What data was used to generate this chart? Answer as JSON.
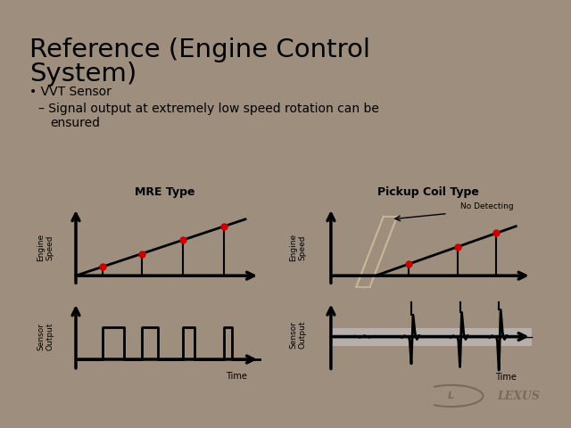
{
  "bg_color": "#9e8e7e",
  "slide_bg": "#f0eeec",
  "title_line1": "Reference (Engine Control",
  "title_line2": "System)",
  "bullet1": "VVT Sensor",
  "bullet2_line1": "Signal output at extremely low speed rotation can be",
  "bullet2_line2": "ensured",
  "mre_title": "MRE Type",
  "pickup_title": "Pickup Coil Type",
  "no_detecting_label": "No Detecting",
  "engine_speed_label": "Engine\nSpeed",
  "sensor_output_label": "Sensor\nOutput",
  "time_label": "Time",
  "red_dot_color": "#cc0000",
  "tan_line_color": "#c8b89a",
  "gray_band_color": "#c8c8c8"
}
